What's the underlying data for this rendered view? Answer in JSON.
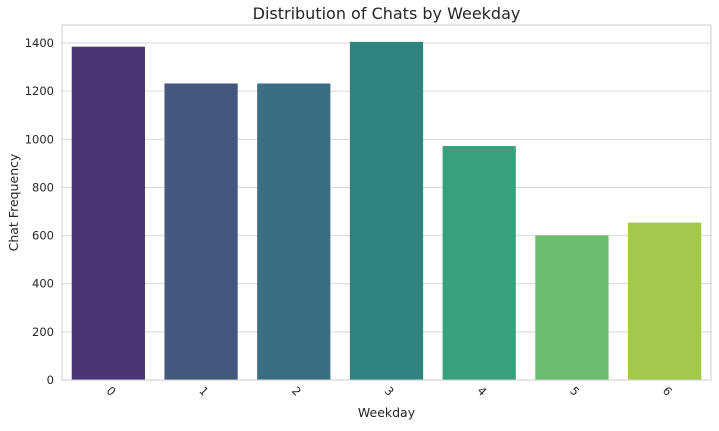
{
  "chart_data": {
    "type": "bar",
    "title": "Distribution of Chats by Weekday",
    "xlabel": "Weekday",
    "ylabel": "Chat Frequency",
    "categories": [
      "0",
      "1",
      "2",
      "3",
      "4",
      "5",
      "6"
    ],
    "values": [
      1385,
      1232,
      1232,
      1405,
      972,
      601,
      654
    ],
    "bar_colors": [
      "#4a3673",
      "#44577f",
      "#3b6e82",
      "#2e847e",
      "#3a9f7b",
      "#6bbc6d",
      "#a4c84a"
    ],
    "ylim": [
      0,
      1475
    ],
    "yticks": [
      0,
      200,
      400,
      600,
      800,
      1000,
      1200,
      1400
    ],
    "grid": true,
    "background": "#ffffff",
    "grid_color": "#d9d9d9"
  }
}
